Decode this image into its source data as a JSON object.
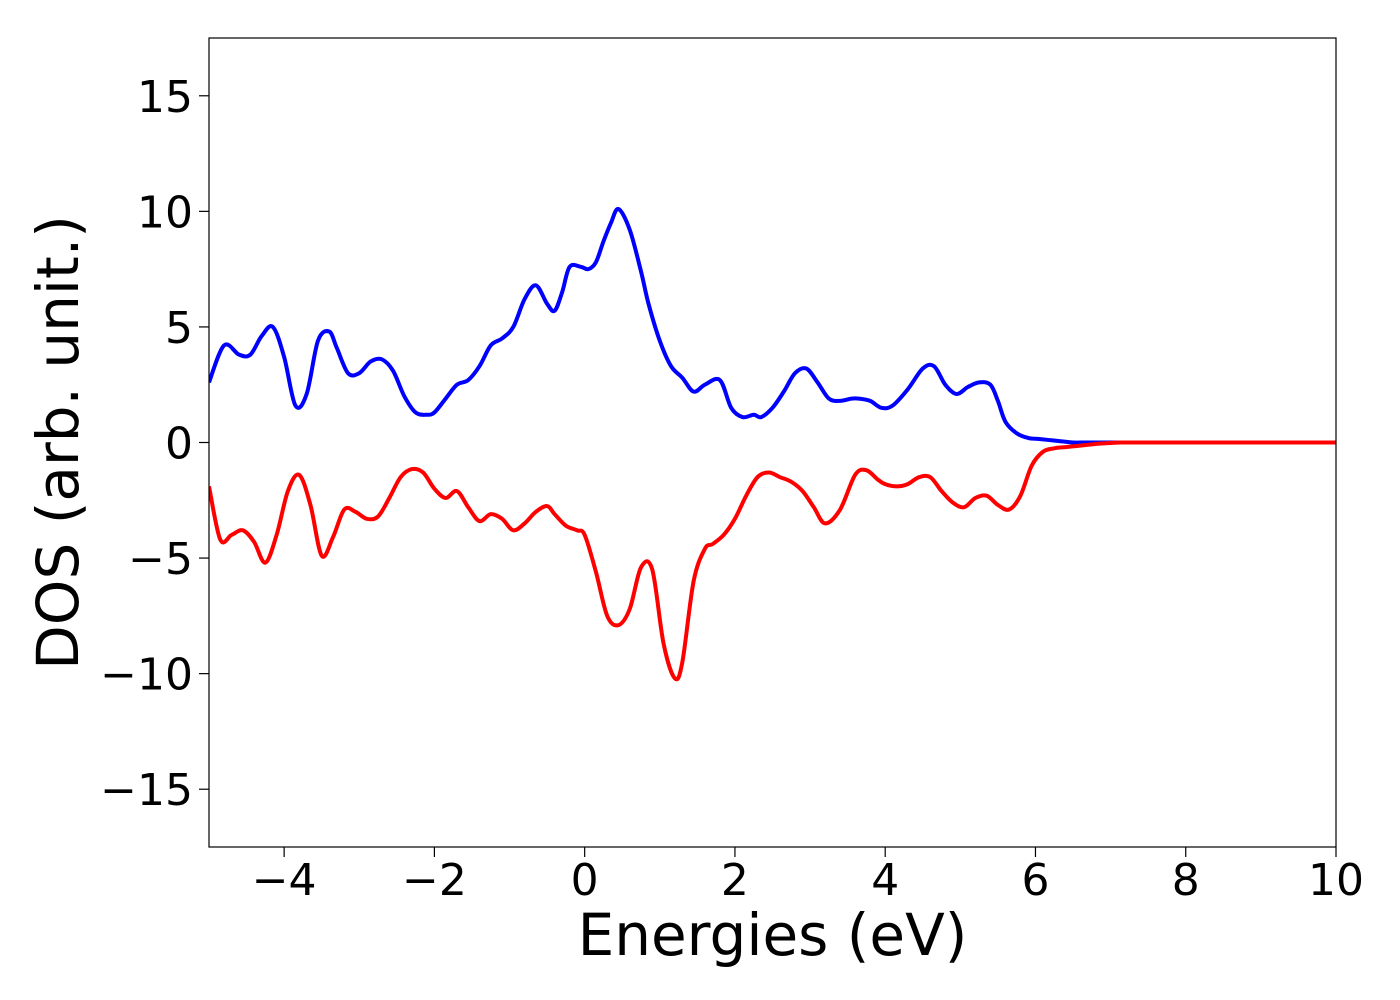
{
  "chart_data": {
    "type": "line",
    "title": "",
    "xlabel": "Energies (eV)",
    "ylabel": "DOS (arb. unit.)",
    "xlim": [
      -5,
      10
    ],
    "ylim": [
      -17.5,
      17.5
    ],
    "xticks": [
      -4,
      -2,
      0,
      2,
      4,
      6,
      8,
      10
    ],
    "xtick_labels": [
      "−4",
      "−2",
      "0",
      "2",
      "4",
      "6",
      "8",
      "10"
    ],
    "yticks": [
      15,
      10,
      5,
      0,
      -5,
      -10,
      -15
    ],
    "ytick_labels": [
      "15",
      "10",
      "5",
      "0",
      "−5",
      "−10",
      "−15"
    ],
    "grid": false,
    "legend": "none",
    "series": [
      {
        "color": "#0000ff",
        "x": [
          -5.0,
          -4.8,
          -4.6,
          -4.45,
          -4.3,
          -4.15,
          -4.0,
          -3.85,
          -3.7,
          -3.55,
          -3.4,
          -3.3,
          -3.15,
          -3.0,
          -2.85,
          -2.7,
          -2.55,
          -2.4,
          -2.25,
          -2.1,
          -2.0,
          -1.85,
          -1.7,
          -1.55,
          -1.4,
          -1.25,
          -1.1,
          -0.95,
          -0.8,
          -0.65,
          -0.5,
          -0.4,
          -0.3,
          -0.2,
          -0.05,
          0.05,
          0.15,
          0.25,
          0.35,
          0.45,
          0.6,
          0.75,
          0.85,
          1.0,
          1.15,
          1.3,
          1.45,
          1.6,
          1.8,
          1.95,
          2.1,
          2.25,
          2.35,
          2.5,
          2.65,
          2.8,
          2.95,
          3.1,
          3.25,
          3.4,
          3.55,
          3.65,
          3.8,
          3.95,
          4.1,
          4.3,
          4.5,
          4.65,
          4.8,
          4.95,
          5.1,
          5.25,
          5.4,
          5.5,
          5.6,
          5.75,
          5.9,
          6.05,
          6.2,
          6.35,
          6.5,
          6.65,
          6.8,
          6.95,
          7.1,
          7.3,
          7.6,
          8.0,
          8.5,
          9.0,
          10.0
        ],
        "y": [
          2.6,
          4.2,
          3.8,
          3.8,
          4.6,
          5.0,
          3.7,
          1.6,
          2.1,
          4.4,
          4.8,
          4.1,
          3.0,
          3.0,
          3.5,
          3.6,
          3.1,
          2.0,
          1.3,
          1.2,
          1.3,
          1.9,
          2.5,
          2.7,
          3.3,
          4.2,
          4.5,
          5.0,
          6.2,
          6.8,
          6.0,
          5.7,
          6.5,
          7.6,
          7.6,
          7.5,
          7.8,
          8.7,
          9.5,
          10.1,
          9.2,
          7.4,
          6.0,
          4.4,
          3.3,
          2.8,
          2.2,
          2.5,
          2.7,
          1.5,
          1.1,
          1.2,
          1.1,
          1.5,
          2.2,
          3.0,
          3.2,
          2.6,
          1.9,
          1.8,
          1.9,
          1.9,
          1.8,
          1.5,
          1.6,
          2.3,
          3.2,
          3.3,
          2.5,
          2.1,
          2.4,
          2.6,
          2.5,
          1.8,
          0.9,
          0.4,
          0.2,
          0.15,
          0.1,
          0.05,
          0.0,
          0.0,
          0.0,
          0.0,
          0.0,
          0.0,
          0.0,
          0.0,
          0.0,
          0.0,
          0.0
        ]
      },
      {
        "color": "#ff0000",
        "x": [
          -5.0,
          -4.85,
          -4.7,
          -4.55,
          -4.4,
          -4.25,
          -4.1,
          -3.95,
          -3.8,
          -3.65,
          -3.5,
          -3.35,
          -3.2,
          -3.05,
          -2.9,
          -2.75,
          -2.6,
          -2.45,
          -2.3,
          -2.15,
          -2.0,
          -1.85,
          -1.7,
          -1.55,
          -1.4,
          -1.25,
          -1.1,
          -0.95,
          -0.8,
          -0.65,
          -0.5,
          -0.4,
          -0.25,
          -0.1,
          0.0,
          0.15,
          0.3,
          0.45,
          0.6,
          0.75,
          0.9,
          1.05,
          1.2,
          1.3,
          1.45,
          1.6,
          1.7,
          1.85,
          2.0,
          2.15,
          2.3,
          2.45,
          2.6,
          2.75,
          2.9,
          3.05,
          3.2,
          3.4,
          3.6,
          3.75,
          3.9,
          4.0,
          4.15,
          4.3,
          4.45,
          4.6,
          4.75,
          4.9,
          5.05,
          5.2,
          5.35,
          5.5,
          5.65,
          5.8,
          5.95,
          6.1,
          6.25,
          6.4,
          6.55,
          6.7,
          6.85,
          7.0,
          7.15,
          7.3,
          7.6,
          8.0,
          8.5,
          9.0,
          10.0
        ],
        "y": [
          -1.9,
          -4.2,
          -4.0,
          -3.8,
          -4.3,
          -5.2,
          -4.0,
          -2.1,
          -1.4,
          -2.7,
          -4.9,
          -4.1,
          -2.9,
          -3.0,
          -3.3,
          -3.2,
          -2.4,
          -1.5,
          -1.15,
          -1.3,
          -2.0,
          -2.4,
          -2.1,
          -2.8,
          -3.4,
          -3.1,
          -3.3,
          -3.8,
          -3.5,
          -3.0,
          -2.75,
          -3.1,
          -3.6,
          -3.8,
          -4.0,
          -5.6,
          -7.5,
          -7.9,
          -7.2,
          -5.4,
          -5.5,
          -8.7,
          -10.2,
          -9.5,
          -6.0,
          -4.6,
          -4.4,
          -4.0,
          -3.3,
          -2.3,
          -1.5,
          -1.3,
          -1.5,
          -1.7,
          -2.1,
          -2.8,
          -3.5,
          -2.9,
          -1.4,
          -1.2,
          -1.6,
          -1.8,
          -1.9,
          -1.8,
          -1.5,
          -1.5,
          -2.1,
          -2.6,
          -2.8,
          -2.4,
          -2.3,
          -2.7,
          -2.9,
          -2.3,
          -1.0,
          -0.4,
          -0.25,
          -0.2,
          -0.15,
          -0.1,
          -0.05,
          -0.02,
          0.0,
          0.0,
          0.0,
          0.0,
          0.0,
          0.0,
          0.0
        ]
      }
    ]
  }
}
